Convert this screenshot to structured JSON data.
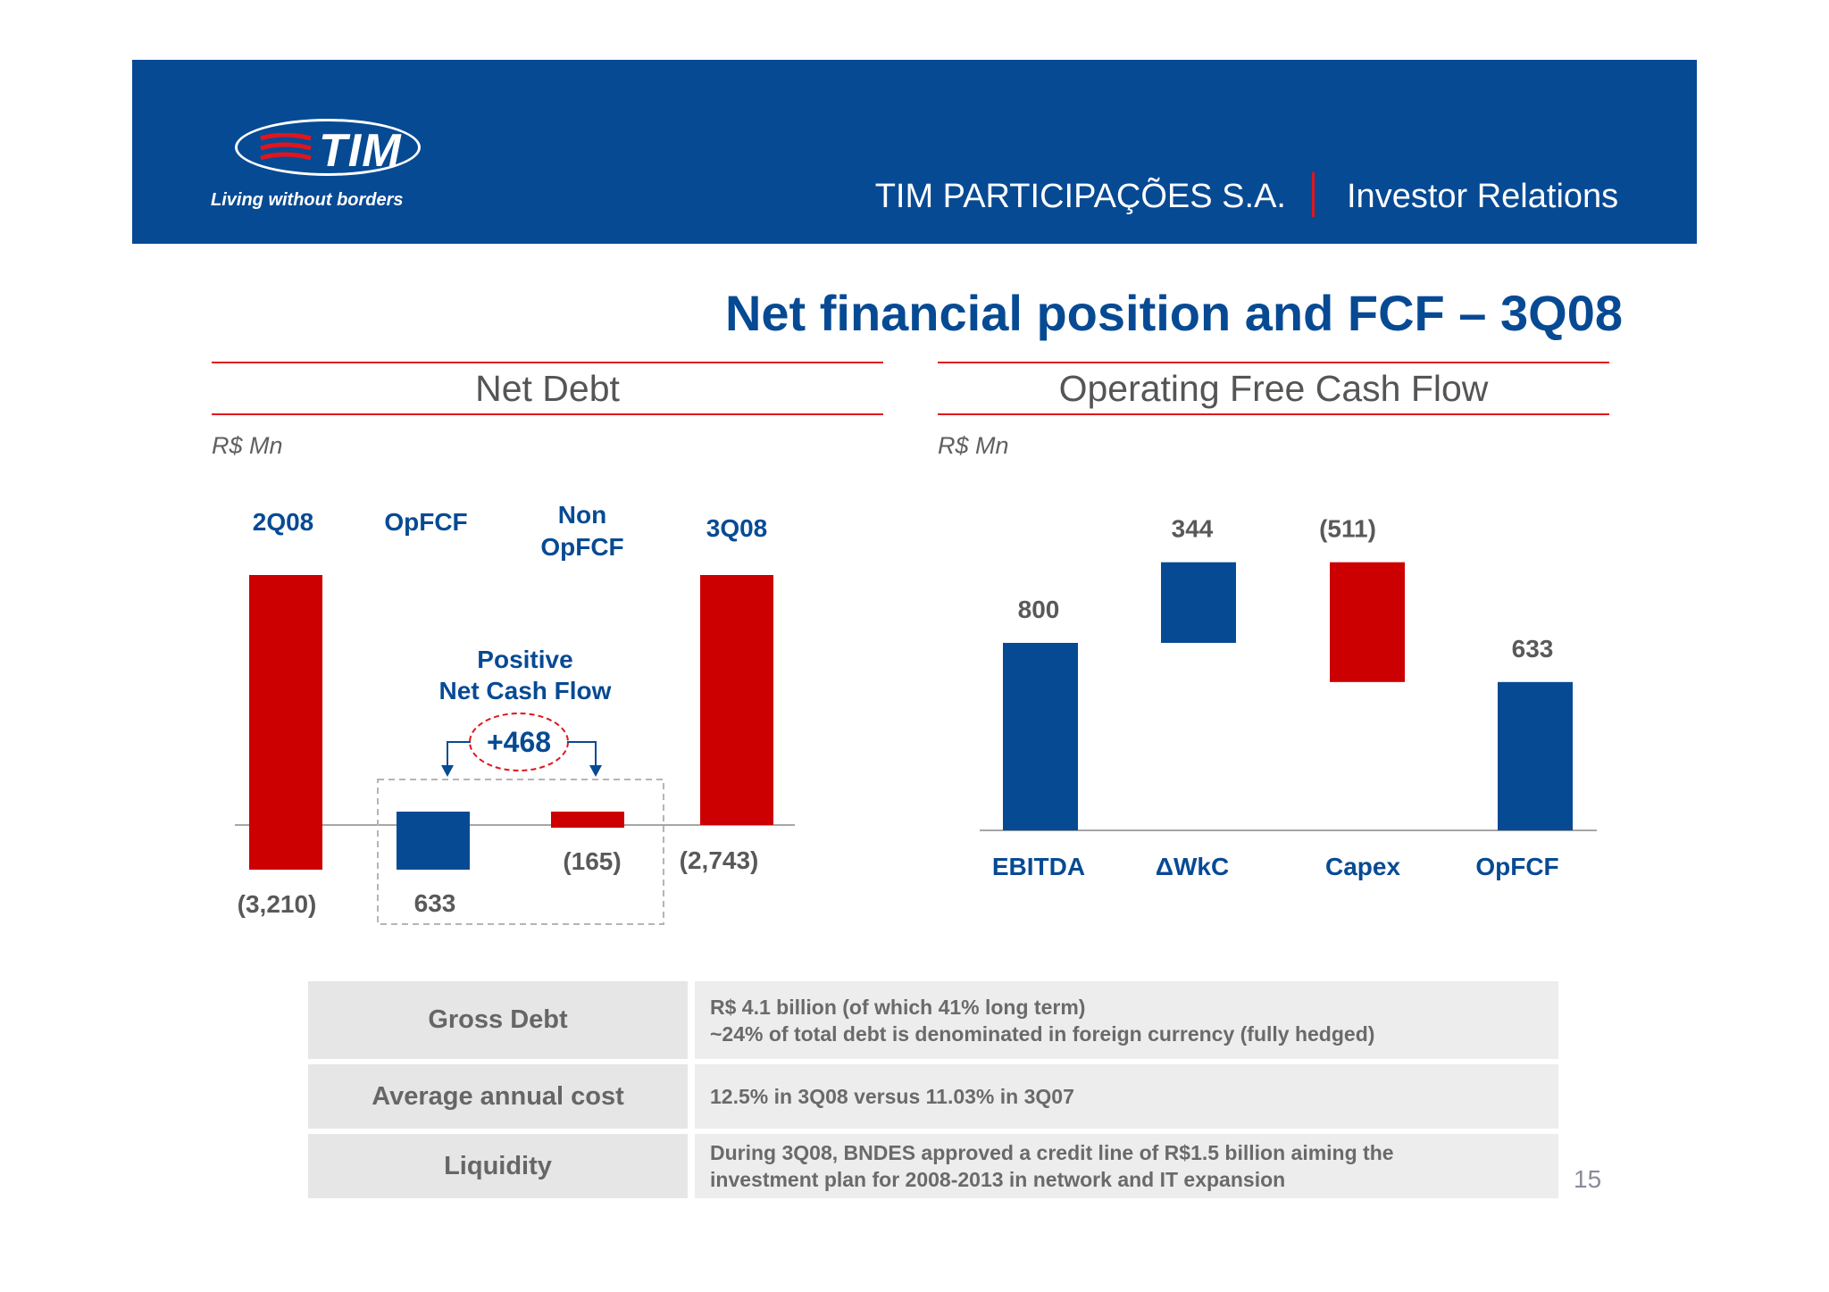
{
  "header": {
    "logo_text": "TIM",
    "tagline": "Living without borders",
    "company": "TIM PARTICIPAÇÕES S.A.",
    "section": "Investor Relations"
  },
  "title": "Net financial position and FCF – 3Q08",
  "colors": {
    "brand_blue": "#074a94",
    "brand_red": "#cc0000",
    "accent_red": "#e0161c"
  },
  "chart_data": [
    {
      "type": "bar",
      "title": "Net Debt",
      "unit": "R$ Mn",
      "subtype": "waterfall",
      "categories": [
        "2Q08",
        "OpFCF",
        "Non OpFCF",
        "3Q08"
      ],
      "category_labels": [
        [
          "2Q08"
        ],
        [
          "OpFCF"
        ],
        [
          "Non",
          "OpFCF"
        ],
        [
          "3Q08"
        ]
      ],
      "values": [
        -3210,
        633,
        -165,
        -2743
      ],
      "value_labels": [
        "(3,210)",
        "633",
        "(165)",
        "(2,743)"
      ],
      "annotation": {
        "lines": [
          "Positive",
          "Net Cash Flow"
        ],
        "value": "+468"
      }
    },
    {
      "type": "bar",
      "title": "Operating Free Cash Flow",
      "unit": "R$ Mn",
      "subtype": "waterfall",
      "categories": [
        "EBITDA",
        "ΔWkC",
        "Capex",
        "OpFCF"
      ],
      "values": [
        800,
        344,
        -511,
        633
      ],
      "value_labels": [
        "800",
        "344",
        "(511)",
        "633"
      ]
    }
  ],
  "info_table": [
    {
      "label": "Gross Debt",
      "lines": [
        "R$ 4.1 billion (of which 41% long term)",
        "~24% of total debt is denominated in foreign currency (fully hedged)"
      ]
    },
    {
      "label": "Average annual cost",
      "lines": [
        "12.5% in 3Q08 versus 11.03% in 3Q07"
      ]
    },
    {
      "label": "Liquidity",
      "lines": [
        "During 3Q08, BNDES approved a credit line of R$1.5 billion aiming the",
        "investment plan for 2008-2013 in network and IT expansion"
      ]
    }
  ],
  "page_number": "15"
}
